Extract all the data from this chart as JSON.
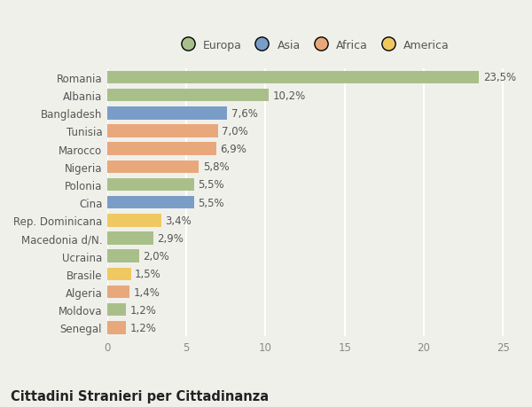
{
  "categories": [
    "Senegal",
    "Moldova",
    "Algeria",
    "Brasile",
    "Ucraina",
    "Macedonia d/N.",
    "Rep. Dominicana",
    "Cina",
    "Polonia",
    "Nigeria",
    "Marocco",
    "Tunisia",
    "Bangladesh",
    "Albania",
    "Romania"
  ],
  "values": [
    1.2,
    1.2,
    1.4,
    1.5,
    2.0,
    2.9,
    3.4,
    5.5,
    5.5,
    5.8,
    6.9,
    7.0,
    7.6,
    10.2,
    23.5
  ],
  "labels": [
    "1,2%",
    "1,2%",
    "1,4%",
    "1,5%",
    "2,0%",
    "2,9%",
    "3,4%",
    "5,5%",
    "5,5%",
    "5,8%",
    "6,9%",
    "7,0%",
    "7,6%",
    "10,2%",
    "23,5%"
  ],
  "colors": [
    "#e8a87c",
    "#a8bf8a",
    "#e8a87c",
    "#f0c862",
    "#a8bf8a",
    "#a8bf8a",
    "#f0c862",
    "#7a9dc8",
    "#a8bf8a",
    "#e8a87c",
    "#e8a87c",
    "#e8a87c",
    "#7a9dc8",
    "#a8bf8a",
    "#a8bf8a"
  ],
  "legend_labels": [
    "Europa",
    "Asia",
    "Africa",
    "America"
  ],
  "legend_colors": [
    "#a8bf8a",
    "#7a9dc8",
    "#e8a87c",
    "#f0c862"
  ],
  "title": "Cittadini Stranieri per Cittadinanza",
  "xlim": [
    0,
    26
  ],
  "xticks": [
    0,
    5,
    10,
    15,
    20,
    25
  ],
  "background_color": "#f0f0eb",
  "bar_height": 0.72,
  "label_fontsize": 8.5,
  "tick_fontsize": 8.5,
  "title_fontsize": 10.5,
  "subtitle_fontsize": 7.5
}
